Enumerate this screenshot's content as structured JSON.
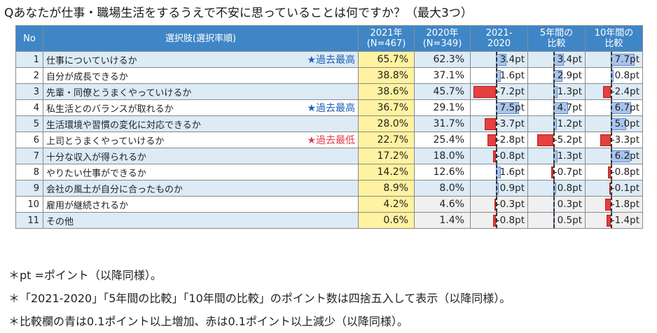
{
  "title": "Qあなたが仕事・職場生活をするうえで不安に思っていることは何ですか？（最大3つ）",
  "header": {
    "no": "No",
    "option": "選択肢(選択率順)",
    "y2021": "2021年",
    "y2021_n": "(N=467)",
    "y2020": "2020年",
    "y2020_n": "(N=349)",
    "d1": "2021-",
    "d1b": "2020",
    "d5": "5年間の",
    "d5b": "比較",
    "d10": "10年間の",
    "d10b": "比較"
  },
  "rows": [
    {
      "no": "1",
      "label": "仕事についていけるか",
      "note": "★過去最高",
      "y2021": "65.7%",
      "y2020": "62.3%",
      "c1": "3.4pt",
      "c5": "3.4pt",
      "c10": "7.7pt"
    },
    {
      "no": "2",
      "label": "自分が成長できるか",
      "note": "",
      "y2021": "38.8%",
      "y2020": "37.1%",
      "c1": "1.6pt",
      "c5": "2.9pt",
      "c10": "0.8pt"
    },
    {
      "no": "3",
      "label": "先輩・同僚とうまくやっていけるか",
      "note": "",
      "y2021": "38.6%",
      "y2020": "45.7%",
      "c1": "-7.2pt",
      "c5": "1.3pt",
      "c10": "-2.4pt"
    },
    {
      "no": "4",
      "label": "私生活とのバランスが取れるか",
      "note": "★過去最高",
      "y2021": "36.7%",
      "y2020": "29.1%",
      "c1": "7.5pt",
      "c5": "4.7pt",
      "c10": "6.7pt"
    },
    {
      "no": "5",
      "label": "生活環境や習慣の変化に対応できるか",
      "note": "",
      "y2021": "28.0%",
      "y2020": "31.7%",
      "c1": "-3.7pt",
      "c5": "1.2pt",
      "c10": "5.0pt"
    },
    {
      "no": "6",
      "label": "上司とうまくやっていけるか",
      "note": "★過去最低",
      "y2021": "22.7%",
      "y2020": "25.4%",
      "c1": "-2.8pt",
      "c5": "-5.2pt",
      "c10": "-3.3pt"
    },
    {
      "no": "7",
      "label": "十分な収入が得られるか",
      "note": "",
      "y2021": "17.2%",
      "y2020": "18.0%",
      "c1": "-0.8pt",
      "c5": "1.3pt",
      "c10": "6.2pt"
    },
    {
      "no": "8",
      "label": "やりたい仕事ができるか",
      "note": "",
      "y2021": "14.2%",
      "y2020": "12.6%",
      "c1": "1.6pt",
      "c5": "-0.7pt",
      "c10": "-0.8pt"
    },
    {
      "no": "9",
      "label": "会社の風土が自分に合ったものか",
      "note": "",
      "y2021": "8.9%",
      "y2020": "8.0%",
      "c1": "0.9pt",
      "c5": "0.8pt",
      "c10": "-0.1pt"
    },
    {
      "no": "10",
      "label": "雇用が継続されるか",
      "note": "",
      "y2021": "4.2%",
      "y2020": "4.6%",
      "c1": "-0.3pt",
      "c5": "0.3pt",
      "c10": "-1.8pt"
    },
    {
      "no": "11",
      "label": "その他",
      "note": "",
      "y2021": "0.6%",
      "y2020": "1.4%",
      "c1": "-0.8pt",
      "c5": "0.5pt",
      "c10": "-1.4pt"
    }
  ],
  "notes": [
    "＊pt =ポイント（以降同様）。",
    "＊「2021-2020」「5年間の比較」「10年間の比較」のポイント数は四捨五入して表示（以降同様）。",
    "＊比較欄の青は0.1ポイント以上増加、赤は0.1ポイント以上減少（以降同様）。"
  ],
  "colors": {
    "header": "#3f86c6",
    "stripe": "#dcebf6",
    "highlight": "#fff2a0",
    "increase": "#a9c4ea",
    "decrease": "#e64040",
    "note_blue": "#1f5fb4",
    "note_red": "#e43b4c"
  }
}
